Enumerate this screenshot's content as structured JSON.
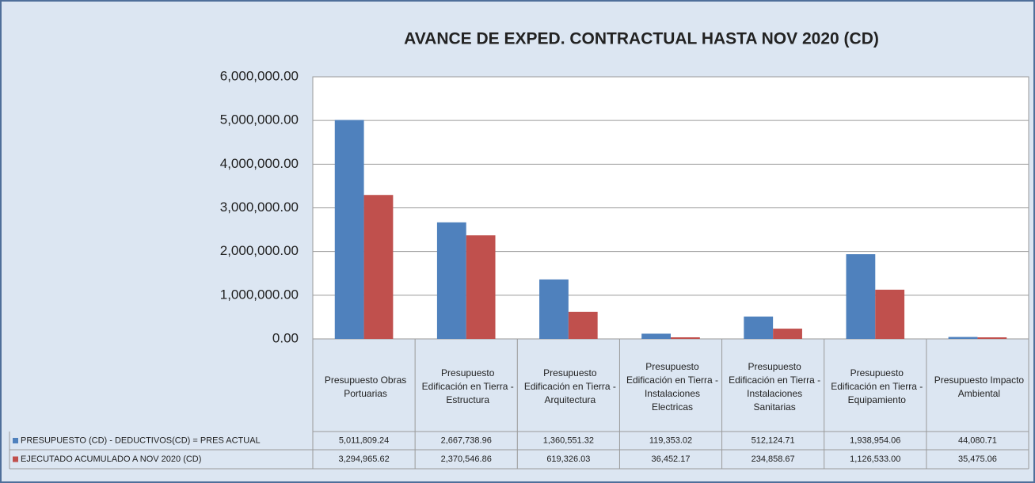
{
  "chart_data": {
    "type": "bar",
    "title": "AVANCE DE EXPED. CONTRACTUAL HASTA NOV 2020 (CD)",
    "categories": [
      "Presupuesto Obras Portuarias",
      "Presupuesto Edificación en Tierra - Estructura",
      "Presupuesto Edificación en Tierra - Arquitectura",
      "Presupuesto Edificación en Tierra - Instalaciones Electricas",
      "Presupuesto Edificación en Tierra - Instalaciones Sanitarias",
      "Presupuesto Edificación en Tierra - Equipamiento",
      "Presupuesto Impacto Ambiental"
    ],
    "series": [
      {
        "name": "PRESUPUESTO (CD) - DEDUCTIVOS(CD) = PRES ACTUAL",
        "color": "#4f81bd",
        "values": [
          5011809.24,
          2667738.96,
          1360551.32,
          119353.02,
          512124.71,
          1938954.06,
          44080.71
        ],
        "value_labels": [
          "5,011,809.24",
          "2,667,738.96",
          "1,360,551.32",
          "119,353.02",
          "512,124.71",
          "1,938,954.06",
          "44,080.71"
        ]
      },
      {
        "name": "EJECUTADO ACUMULADO A NOV 2020 (CD)",
        "color": "#c0504d",
        "values": [
          3294965.62,
          2370546.86,
          619326.03,
          36452.17,
          234858.67,
          1126533.0,
          35475.06
        ],
        "value_labels": [
          "3,294,965.62",
          "2,370,546.86",
          "619,326.03",
          "36,452.17",
          "234,858.67",
          "1,126,533.00",
          "35,475.06"
        ]
      }
    ],
    "ylim": [
      0,
      6000000
    ],
    "yticks": [
      {
        "value": 0,
        "label": "0.00"
      },
      {
        "value": 1000000,
        "label": "1,000,000.00"
      },
      {
        "value": 2000000,
        "label": "2,000,000.00"
      },
      {
        "value": 3000000,
        "label": "3,000,000.00"
      },
      {
        "value": 4000000,
        "label": "4,000,000.00"
      },
      {
        "value": 5000000,
        "label": "5,000,000.00"
      },
      {
        "value": 6000000,
        "label": "6,000,000.00"
      }
    ],
    "grid": true
  }
}
